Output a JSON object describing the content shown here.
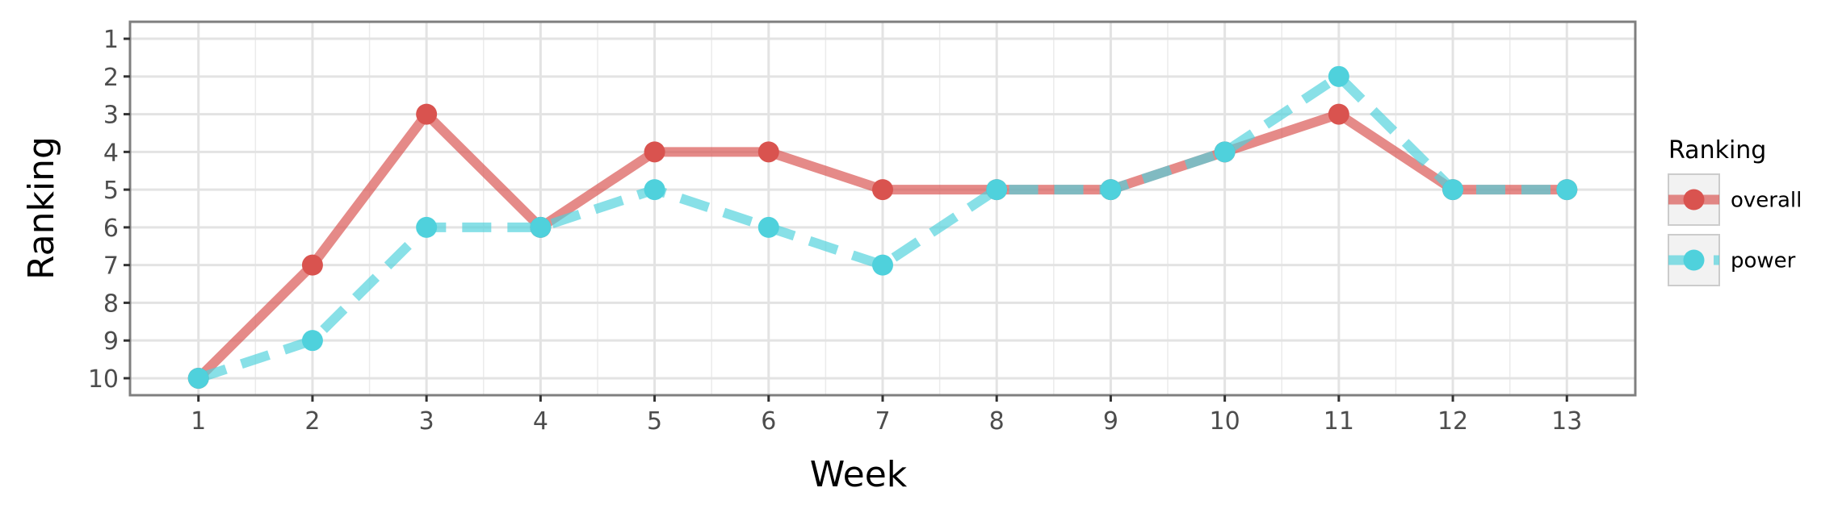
{
  "chart_data": {
    "type": "line",
    "xlabel": "Week",
    "ylabel": "Ranking",
    "x": [
      1,
      2,
      3,
      4,
      5,
      6,
      7,
      8,
      9,
      10,
      11,
      12,
      13
    ],
    "x_ticks": [
      "1",
      "2",
      "3",
      "4",
      "5",
      "6",
      "7",
      "8",
      "9",
      "10",
      "11",
      "12",
      "13"
    ],
    "y_ticks": [
      "1",
      "2",
      "3",
      "4",
      "5",
      "6",
      "7",
      "8",
      "9",
      "10"
    ],
    "xlim": [
      0.4,
      13.6
    ],
    "ylim": [
      10.45,
      0.55
    ],
    "y_reversed": true,
    "grid": true,
    "legend": {
      "title": "Ranking",
      "placement": "right"
    },
    "series": [
      {
        "name": "overall",
        "color": "#d9534f",
        "line_style": "solid",
        "values": [
          10,
          7,
          3,
          6,
          4,
          4,
          5,
          5,
          5,
          4,
          3,
          5,
          5
        ]
      },
      {
        "name": "power",
        "color": "#4fd1dc",
        "line_style": "dashed",
        "values": [
          10,
          9,
          6,
          6,
          5,
          6,
          7,
          5,
          5,
          4,
          2,
          5,
          5
        ]
      }
    ]
  }
}
